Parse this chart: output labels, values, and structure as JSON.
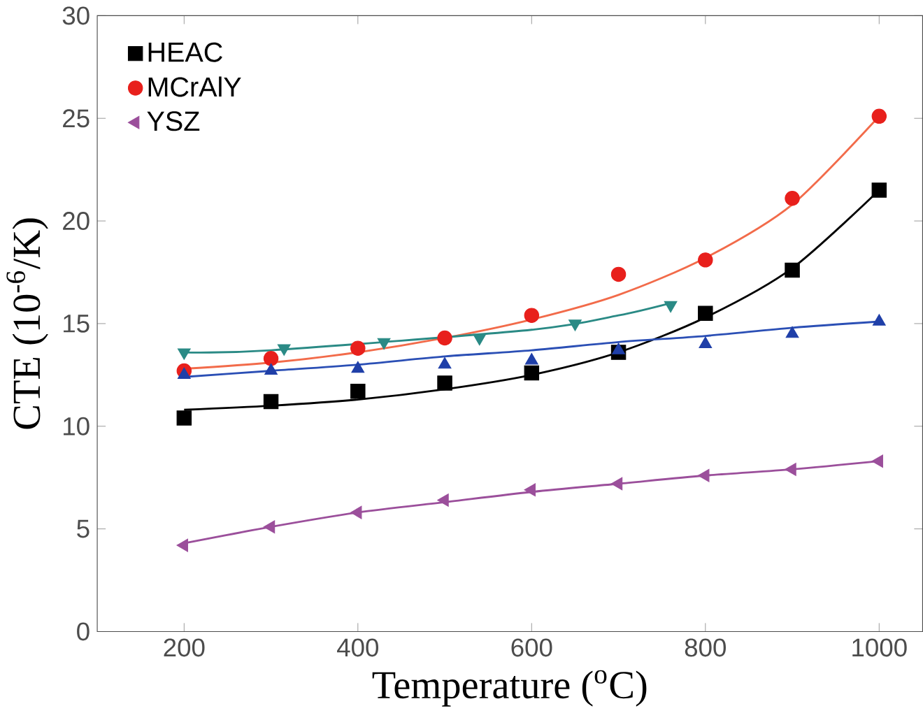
{
  "chart_data": {
    "type": "scatter",
    "xlabel": "Temperature ($^{o}$C)",
    "ylabel": "CTE (10$^{-6}$/K)",
    "xlim": [
      100,
      1050
    ],
    "ylim": [
      0,
      30
    ],
    "xticks": [
      200,
      400,
      600,
      800,
      1000
    ],
    "yticks": [
      0,
      5,
      10,
      15,
      20,
      25,
      30
    ],
    "legend": "top left",
    "grid": false,
    "x": [
      200,
      300,
      400,
      500,
      600,
      700,
      800,
      900,
      1000
    ],
    "series": [
      {
        "type": "line",
        "color": "#000000",
        "values": [
          10.8,
          11.0,
          11.3,
          11.8,
          12.5,
          13.6,
          15.3,
          17.7,
          21.5
        ]
      },
      {
        "type": "line",
        "color": "#f26b4a",
        "values": [
          12.8,
          13.1,
          13.6,
          14.3,
          15.2,
          16.4,
          18.2,
          20.8,
          25.1
        ]
      },
      {
        "type": "line",
        "color": "#2b4fb5",
        "values": [
          12.4,
          12.7,
          13.0,
          13.4,
          13.7,
          14.1,
          14.4,
          14.8,
          15.1
        ]
      },
      {
        "type": "line",
        "color": "#2a8a85",
        "x": [
          200,
          300,
          400,
          500,
          600,
          700,
          760
        ],
        "values": [
          13.6,
          13.7,
          null,
          null,
          14.7,
          15.4,
          16.0
        ]
      },
      {
        "type": "line",
        "color": "#9b4f9b",
        "values": [
          4.3,
          5.1,
          5.8,
          6.3,
          6.8,
          7.2,
          7.6,
          7.9,
          8.3
        ]
      },
      {
        "name": "HEAC",
        "marker": "square",
        "color": "#000000",
        "values": [
          10.4,
          11.2,
          11.7,
          12.1,
          12.6,
          13.6,
          15.5,
          17.6,
          21.5
        ]
      },
      {
        "name": "MCrAlY",
        "marker": "circle",
        "color": "#e8201c",
        "values": [
          12.7,
          13.3,
          13.8,
          14.3,
          15.4,
          17.4,
          18.1,
          21.1,
          25.1
        ]
      },
      {
        "marker": "triangle",
        "color": "#1f3fa8",
        "values": [
          12.5,
          12.7,
          12.8,
          13.0,
          13.2,
          13.7,
          14.0,
          14.5,
          15.1
        ]
      },
      {
        "marker": "triangle-down",
        "color": "#2a8a85",
        "x": [
          200,
          315,
          430,
          540,
          650,
          760
        ],
        "values": [
          13.6,
          13.8,
          14.1,
          14.3,
          15.0,
          15.9
        ]
      },
      {
        "name": "YSZ",
        "marker": "triangle-left",
        "color": "#9b4f9b",
        "values": [
          4.2,
          5.1,
          5.8,
          6.4,
          6.9,
          7.2,
          7.6,
          7.9,
          8.3
        ]
      }
    ]
  }
}
